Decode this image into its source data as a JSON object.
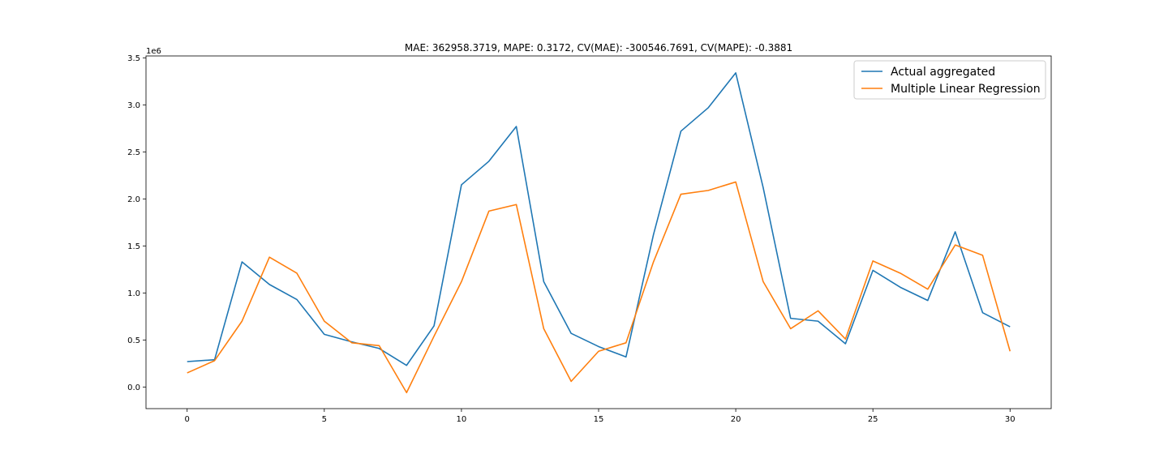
{
  "chart_data": {
    "type": "line",
    "title": "MAE: 362958.3719, MAPE: 0.3172, CV(MAE): -300546.7691, CV(MAPE): -0.3881",
    "xlabel": "",
    "ylabel": "",
    "y_offset_label": "1e6",
    "xlim": [
      -1.5,
      31.5
    ],
    "ylim": [
      -230000,
      3520000
    ],
    "x_ticks": [
      0,
      5,
      10,
      15,
      20,
      25,
      30
    ],
    "y_ticks": [
      0.0,
      0.5,
      1.0,
      1.5,
      2.0,
      2.5,
      3.0,
      3.5
    ],
    "y_tick_labels": [
      "0.0",
      "0.5",
      "1.0",
      "1.5",
      "2.0",
      "2.5",
      "3.0",
      "3.5"
    ],
    "grid": false,
    "legend_position": "top-right",
    "x": [
      0,
      1,
      2,
      3,
      4,
      5,
      6,
      7,
      8,
      9,
      10,
      11,
      12,
      13,
      14,
      15,
      16,
      17,
      18,
      19,
      20,
      21,
      22,
      23,
      24,
      25,
      26,
      27,
      28,
      29,
      30
    ],
    "series": [
      {
        "name": "Actual aggregated",
        "color": "#1f77b4",
        "values": [
          270000,
          290000,
          1330000,
          1090000,
          930000,
          560000,
          480000,
          410000,
          230000,
          650000,
          2150000,
          2400000,
          2770000,
          1120000,
          570000,
          430000,
          320000,
          1620000,
          2720000,
          2970000,
          3340000,
          2120000,
          730000,
          700000,
          460000,
          1240000,
          1060000,
          920000,
          1650000,
          790000,
          640000
        ]
      },
      {
        "name": "Multiple Linear Regression",
        "color": "#ff7f0e",
        "values": [
          150000,
          280000,
          700000,
          1380000,
          1210000,
          700000,
          470000,
          440000,
          -60000,
          540000,
          1120000,
          1870000,
          1940000,
          620000,
          60000,
          380000,
          470000,
          1330000,
          2050000,
          2090000,
          2180000,
          1120000,
          620000,
          810000,
          510000,
          1340000,
          1210000,
          1040000,
          1510000,
          1400000,
          380000
        ]
      }
    ]
  }
}
